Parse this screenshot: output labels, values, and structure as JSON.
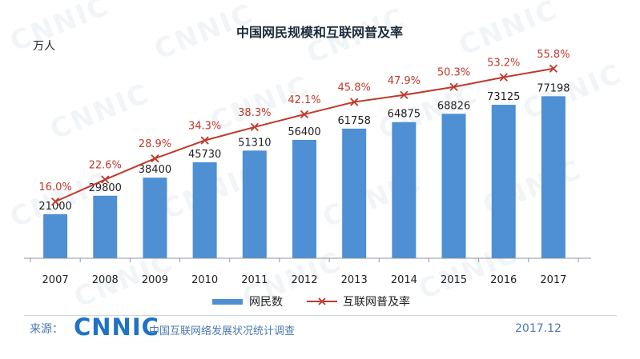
{
  "footer": {
    "source_label": "来源：",
    "brand": "CNNIC",
    "source_org": "中国互联网络发展状况统计调查",
    "date": "2017.12"
  },
  "watermark": "CNNIC",
  "colors": {
    "bar": "#4f8fd3",
    "line": "#c0392b",
    "axis": "#8c96a3",
    "text": "#222222"
  },
  "chart_data": {
    "type": "bar",
    "title": "中国网民规模和互联网普及率",
    "ylabel": "万人",
    "categories": [
      "2007",
      "2008",
      "2009",
      "2010",
      "2011",
      "2012",
      "2013",
      "2014",
      "2015",
      "2016",
      "2017"
    ],
    "ylim": [
      0,
      80000
    ],
    "rate_ylim": [
      0,
      60
    ],
    "series": [
      {
        "name": "网民数",
        "type": "bar",
        "values": [
          21000,
          29800,
          38400,
          45730,
          51310,
          56400,
          61758,
          64875,
          68826,
          73125,
          77198
        ],
        "labels": [
          "21000",
          "29800",
          "38400",
          "45730",
          "51310",
          "56400",
          "61758",
          "64875",
          "68826",
          "73125",
          "77198"
        ]
      },
      {
        "name": "互联网普及率",
        "type": "line",
        "marker": "x",
        "values": [
          16.0,
          22.6,
          28.9,
          34.3,
          38.3,
          42.1,
          45.8,
          47.9,
          50.3,
          53.2,
          55.8
        ],
        "labels": [
          "16.0%",
          "22.6%",
          "28.9%",
          "34.3%",
          "38.3%",
          "42.1%",
          "45.8%",
          "47.9%",
          "50.3%",
          "53.2%",
          "55.8%"
        ]
      }
    ],
    "legend_position": "bottom",
    "grid": false
  }
}
